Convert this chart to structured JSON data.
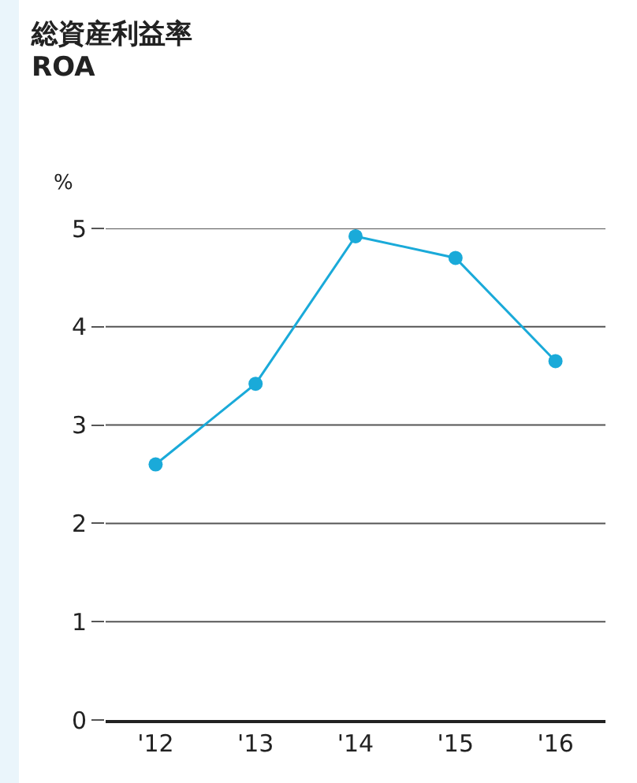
{
  "chart_data": {
    "type": "line",
    "title": "総資産利益率",
    "subtitle": "ROA",
    "ylabel": "%",
    "categories": [
      "'12",
      "'13",
      "'14",
      "'15",
      "'16"
    ],
    "series": [
      {
        "color": "#1aaad9",
        "values": [
          2.6,
          3.42,
          4.92,
          4.7,
          3.65
        ]
      }
    ],
    "ylim": [
      0,
      5
    ],
    "yticks": [
      0,
      1,
      2,
      3,
      4,
      5
    ],
    "grid": "y",
    "marker": "circle",
    "line_style": "solid"
  }
}
